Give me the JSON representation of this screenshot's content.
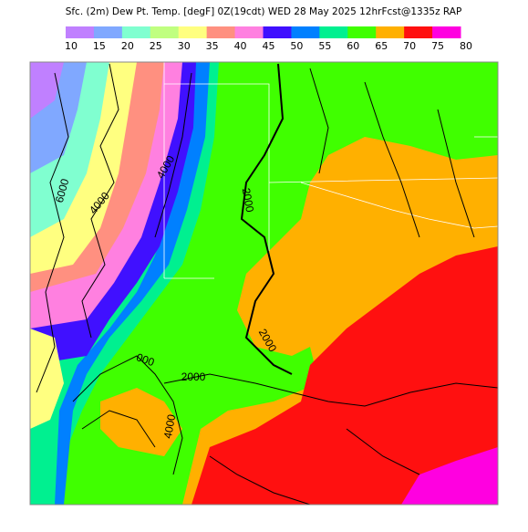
{
  "header": {
    "title": "Sfc. (2m) Dew Pt. Temp. [degF] 0Z(19cdt) WED 28 May 2025 12hrFcst@1335z RAP"
  },
  "colorbar": {
    "labels": [
      10,
      15,
      20,
      25,
      30,
      35,
      40,
      45,
      50,
      55,
      60,
      65,
      70,
      75,
      80
    ],
    "colors": [
      "#c080ff",
      "#80a8ff",
      "#80ffd0",
      "#c0ff80",
      "#ffff80",
      "#ff9080",
      "#ff80e0",
      "#4010ff",
      "#0080ff",
      "#00f090",
      "#40ff00",
      "#ffb000",
      "#ff1010",
      "#ff00e0"
    ]
  },
  "map": {
    "contour_labels": [
      "6000",
      "4000",
      "4000",
      "2000",
      "2000",
      "2000",
      "000",
      "4000"
    ]
  }
}
